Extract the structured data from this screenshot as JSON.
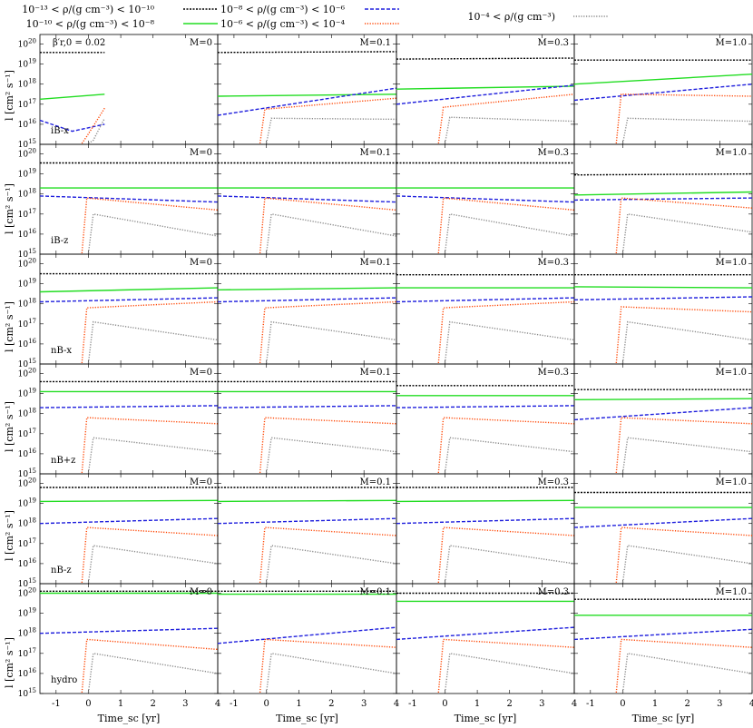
{
  "legend": [
    {
      "label": "10⁻¹³ < ρ/(g cm⁻³) < 10⁻¹⁰",
      "color": "#000000",
      "dash": "short"
    },
    {
      "label": "10⁻¹⁰ < ρ/(g cm⁻³) < 10⁻⁸",
      "color": "#22dd22",
      "dash": "solid"
    },
    {
      "label": "10⁻⁸ < ρ/(g cm⁻³) < 10⁻⁶",
      "color": "#1f1fdd",
      "dash": "long"
    },
    {
      "label": "10⁻⁶ < ρ/(g cm⁻³) < 10⁻⁴",
      "color": "#ff4400",
      "dash": "dot"
    },
    {
      "label": "10⁻⁴ < ρ/(g cm⁻³)",
      "color": "#888888",
      "dash": "dot"
    }
  ],
  "annotation": "β′r,0 = 0.02",
  "ylabel": "l [cm² s⁻¹]",
  "xlabel": "Time_sc [yr]",
  "col_labels": [
    "M=0",
    "M=0.1",
    "M=0.3",
    "M=1.0"
  ],
  "row_labels": [
    "iB-x",
    "iB-z",
    "nB-x",
    "nB+z",
    "nB-z",
    "hydro"
  ],
  "chart_data": {
    "type": "line",
    "layout": "grid 6 rows x 4 columns",
    "xlabel": "Time_sc [yr]",
    "ylabel": "l [cm² s⁻¹]",
    "yscale": "log",
    "xlim": [
      -1.5,
      4
    ],
    "ylim": [
      1000000000000000.0,
      3e+20
    ],
    "xticks": [
      -1,
      0,
      1,
      2,
      3,
      4
    ],
    "yticks_exp": [
      15,
      16,
      17,
      18,
      19,
      20
    ],
    "panels": [
      [
        {
          "l1": [
            19.58,
            19.58
          ],
          "l2": [
            17.25,
            17.5
          ],
          "l3": [
            16.2,
            15.65,
            16.0
          ],
          "l4": [
            15.2,
            16.8
          ],
          "l5": [
            15.0,
            16.3
          ],
          "end": 0.5
        },
        {
          "l1": [
            19.58,
            19.62
          ],
          "l2": [
            17.4,
            17.5
          ],
          "l3": [
            16.45,
            17.8
          ],
          "l4": [
            16.55,
            17.3
          ],
          "l5": [
            16.1,
            16.25
          ],
          "end": 4
        },
        {
          "l1": [
            19.25,
            19.3
          ],
          "l2": [
            17.75,
            17.9
          ],
          "l3": [
            17.0,
            17.95
          ],
          "l4": [
            16.65,
            17.5
          ],
          "l5": [
            16.15,
            16.15
          ],
          "end": 4
        },
        {
          "l1": [
            19.2,
            19.2
          ],
          "l2": [
            18.0,
            18.5
          ],
          "l3": [
            17.2,
            18.0
          ],
          "l4": [
            17.3,
            17.4
          ],
          "l5": [
            16.1,
            16.15
          ],
          "end": 4
        }
      ],
      [
        {
          "l1": [
            19.55,
            19.55
          ],
          "l2": [
            18.3,
            18.3
          ],
          "l3": [
            17.9,
            17.6
          ],
          "l4": [
            17.6,
            17.2
          ],
          "l5": [
            16.8,
            15.9
          ],
          "end": 4
        },
        {
          "l1": [
            19.55,
            19.55
          ],
          "l2": [
            18.3,
            18.3
          ],
          "l3": [
            17.9,
            17.6
          ],
          "l4": [
            17.6,
            17.2
          ],
          "l5": [
            16.8,
            15.9
          ],
          "end": 4
        },
        {
          "l1": [
            19.55,
            19.55
          ],
          "l2": [
            18.3,
            18.3
          ],
          "l3": [
            17.9,
            17.6
          ],
          "l4": [
            17.6,
            17.2
          ],
          "l5": [
            16.8,
            15.9
          ],
          "end": 4
        },
        {
          "l1": [
            18.95,
            19.0
          ],
          "l2": [
            17.95,
            18.1
          ],
          "l3": [
            17.7,
            17.8
          ],
          "l4": [
            17.6,
            17.3
          ],
          "l5": [
            16.8,
            16.1
          ],
          "end": 4
        }
      ],
      [
        {
          "l1": [
            19.5,
            19.5
          ],
          "l2": [
            18.6,
            18.8
          ],
          "l3": [
            18.1,
            18.3
          ],
          "l4": [
            17.6,
            18.1
          ],
          "l5": [
            16.9,
            16.2
          ],
          "end": 4
        },
        {
          "l1": [
            19.5,
            19.5
          ],
          "l2": [
            18.7,
            18.8
          ],
          "l3": [
            18.1,
            18.3
          ],
          "l4": [
            17.6,
            18.1
          ],
          "l5": [
            16.9,
            16.2
          ],
          "end": 4
        },
        {
          "l1": [
            19.45,
            19.45
          ],
          "l2": [
            18.8,
            18.8
          ],
          "l3": [
            18.1,
            18.3
          ],
          "l4": [
            17.6,
            18.1
          ],
          "l5": [
            16.9,
            16.2
          ],
          "end": 4
        },
        {
          "l1": [
            19.45,
            19.45
          ],
          "l2": [
            18.85,
            18.8
          ],
          "l3": [
            18.2,
            18.35
          ],
          "l4": [
            17.65,
            17.6
          ],
          "l5": [
            16.9,
            16.2
          ],
          "end": 4
        }
      ],
      [
        {
          "l1": [
            19.6,
            19.6
          ],
          "l2": [
            19.1,
            19.1
          ],
          "l3": [
            18.3,
            18.4
          ],
          "l4": [
            17.6,
            17.5
          ],
          "l5": [
            16.6,
            16.1
          ],
          "end": 4
        },
        {
          "l1": [
            19.6,
            19.6
          ],
          "l2": [
            19.1,
            19.1
          ],
          "l3": [
            18.3,
            18.4
          ],
          "l4": [
            17.6,
            17.5
          ],
          "l5": [
            16.6,
            16.1
          ],
          "end": 4
        },
        {
          "l1": [
            19.4,
            19.4
          ],
          "l2": [
            18.9,
            18.9
          ],
          "l3": [
            18.3,
            18.4
          ],
          "l4": [
            17.6,
            17.5
          ],
          "l5": [
            16.6,
            16.1
          ],
          "end": 4
        },
        {
          "l1": [
            19.2,
            19.2
          ],
          "l2": [
            18.7,
            18.75
          ],
          "l3": [
            17.7,
            18.3
          ],
          "l4": [
            17.6,
            17.5
          ],
          "l5": [
            16.6,
            16.1
          ],
          "end": 4
        }
      ],
      [
        {
          "l1": [
            19.8,
            19.8
          ],
          "l2": [
            19.1,
            19.15
          ],
          "l3": [
            18.0,
            18.25
          ],
          "l4": [
            17.6,
            17.4
          ],
          "l5": [
            16.7,
            16.0
          ],
          "end": 4
        },
        {
          "l1": [
            19.8,
            19.8
          ],
          "l2": [
            19.1,
            19.15
          ],
          "l3": [
            18.0,
            18.25
          ],
          "l4": [
            17.6,
            17.4
          ],
          "l5": [
            16.7,
            16.0
          ],
          "end": 4
        },
        {
          "l1": [
            19.8,
            19.8
          ],
          "l2": [
            19.1,
            19.15
          ],
          "l3": [
            18.0,
            18.25
          ],
          "l4": [
            17.6,
            17.4
          ],
          "l5": [
            16.7,
            16.0
          ],
          "end": 4
        },
        {
          "l1": [
            19.55,
            19.55
          ],
          "l2": [
            18.8,
            18.8
          ],
          "l3": [
            17.8,
            18.25
          ],
          "l4": [
            17.6,
            17.4
          ],
          "l5": [
            16.7,
            16.0
          ],
          "end": 4
        }
      ],
      [
        {
          "l1": [
            20.1,
            20.1
          ],
          "l2": [
            20.0,
            20.0
          ],
          "l3": [
            18.0,
            18.25
          ],
          "l4": [
            17.5,
            17.2
          ],
          "l5": [
            16.8,
            16.0
          ],
          "end": 4
        },
        {
          "l1": [
            20.1,
            20.1
          ],
          "l2": [
            19.95,
            19.95
          ],
          "l3": [
            17.5,
            18.3
          ],
          "l4": [
            17.5,
            17.3
          ],
          "l5": [
            16.8,
            16.0
          ],
          "end": 4
        },
        {
          "l1": [
            20.0,
            20.0
          ],
          "l2": [
            19.6,
            19.6
          ],
          "l3": [
            17.7,
            18.3
          ],
          "l4": [
            17.5,
            17.3
          ],
          "l5": [
            16.8,
            16.0
          ],
          "end": 4
        },
        {
          "l1": [
            19.7,
            19.7
          ],
          "l2": [
            18.9,
            18.9
          ],
          "l3": [
            17.7,
            18.2
          ],
          "l4": [
            17.5,
            17.3
          ],
          "l5": [
            16.8,
            16.0
          ],
          "end": 4
        }
      ]
    ]
  }
}
